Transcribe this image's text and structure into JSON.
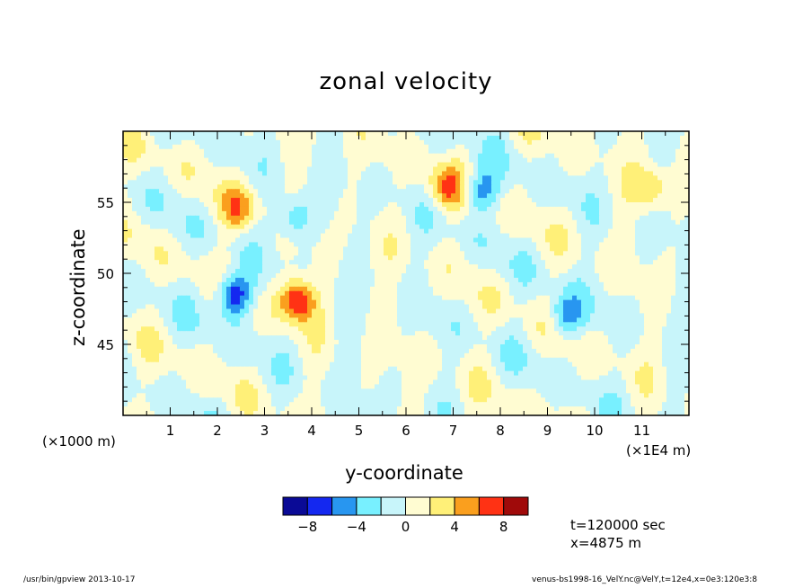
{
  "chart_data": {
    "type": "heatmap",
    "title": "zonal velocity",
    "xlabel": "y-coordinate",
    "ylabel": "z-coordinate",
    "x_unit_left": "(×1000 m)",
    "x_unit_right": "(×1E4 m)",
    "xlim": [
      0,
      12
    ],
    "ylim": [
      40,
      60
    ],
    "xticks": [
      1,
      2,
      3,
      4,
      5,
      6,
      7,
      8,
      9,
      10,
      11
    ],
    "xtick_labels": [
      "1",
      "2",
      "3",
      "4",
      "5",
      "6",
      "7",
      "8",
      "9",
      "10",
      "11"
    ],
    "yticks": [
      45,
      50,
      55
    ],
    "ytick_labels": [
      "45",
      "50",
      "55"
    ],
    "colorbar": {
      "levels": [
        -10,
        -8,
        -6,
        -4,
        -2,
        0,
        2,
        4,
        6,
        8,
        10
      ],
      "tick_values": [
        -8,
        -4,
        0,
        4,
        8
      ],
      "tick_labels": [
        "−8",
        "−4",
        "0",
        "4",
        "8"
      ],
      "colors": [
        "#0a0a96",
        "#1428f0",
        "#2896f0",
        "#78f0ff",
        "#c8f5fa",
        "#fffcd2",
        "#fff078",
        "#fa9f1e",
        "#ff3214",
        "#a00a0a"
      ]
    },
    "features": [
      {
        "x": 2.35,
        "z": 48.5,
        "value": -8.5
      },
      {
        "x": 3.7,
        "z": 48.1,
        "value": 8.5
      },
      {
        "x": 7.6,
        "z": 55.8,
        "value": -5.5
      },
      {
        "x": 3.6,
        "z": 53.9,
        "value": -4.5
      },
      {
        "x": 9.4,
        "z": 47.0,
        "value": -5.0
      },
      {
        "x": 6.85,
        "z": 56.0,
        "value": 5.5
      },
      {
        "x": 2.45,
        "z": 54.5,
        "value": 5.0
      },
      {
        "x": 11.2,
        "z": 56.0,
        "value": 4.5
      }
    ]
  },
  "annotations": {
    "time": "t=120000 sec",
    "position": "x=4875 m"
  },
  "footer": {
    "left": "/usr/bin/gpview  2013-10-17",
    "right": "venus-bs1998-16_VelY.nc@VelY,t=12e4,x=0e3:120e3:8"
  }
}
